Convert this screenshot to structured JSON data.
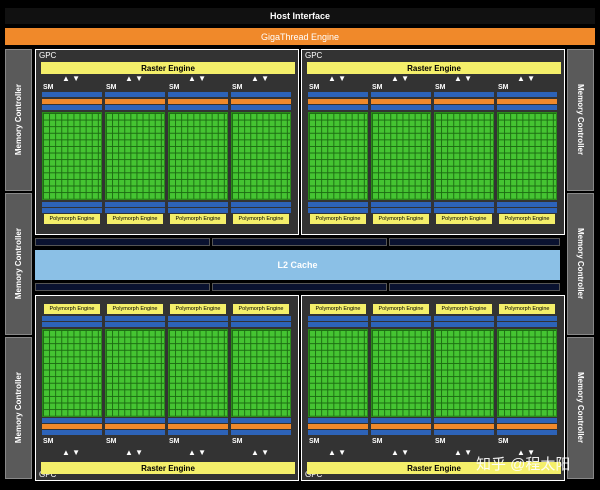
{
  "diagram": {
    "host_interface": "Host Interface",
    "gigathread_engine": "GigaThread Engine",
    "memory_controller": "Memory Controller",
    "l2_cache": "L2 Cache",
    "gpc_label": "GPC",
    "raster_engine": "Raster Engine",
    "sm_label": "SM",
    "polymorph_engine": "Polymorph Engine",
    "up_arrows": "▲ ▼",
    "watermark": "知乎 @程太阳"
  },
  "colors": {
    "gigathread": "#f0892a",
    "raster": "#f4ef6a",
    "cores": "#45c432",
    "l2": "#8bc0e6",
    "memory_controller": "#5a5a5a"
  }
}
